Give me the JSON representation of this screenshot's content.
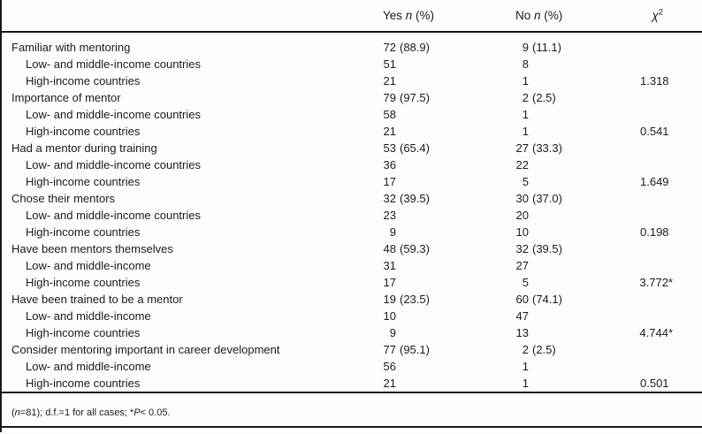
{
  "header": {
    "yes": {
      "pre": "Yes ",
      "n": "n",
      "post": " (%)"
    },
    "no": {
      "pre": "No ",
      "n": "n",
      "post": " (%)"
    },
    "chi": {
      "base": "χ",
      "sup": "2"
    }
  },
  "table": {
    "rows": [
      {
        "label": "Familiar with mentoring",
        "indent": false,
        "yes_n": "72",
        "yes_pct": "(88.9)",
        "no_n": "9",
        "no_pct": "(11.1)",
        "chi": "",
        "star": ""
      },
      {
        "label": "Low- and middle-income countries",
        "indent": true,
        "yes_n": "51",
        "yes_pct": "",
        "no_n": "8",
        "no_pct": "",
        "chi": "",
        "star": ""
      },
      {
        "label": "High-income countries",
        "indent": true,
        "yes_n": "21",
        "yes_pct": "",
        "no_n": "1",
        "no_pct": "",
        "chi": "1.318",
        "star": ""
      },
      {
        "label": "Importance of mentor",
        "indent": false,
        "yes_n": "79",
        "yes_pct": "(97.5)",
        "no_n": "2",
        "no_pct": "(2.5)",
        "chi": "",
        "star": ""
      },
      {
        "label": "Low- and middle-income countries",
        "indent": true,
        "yes_n": "58",
        "yes_pct": "",
        "no_n": "1",
        "no_pct": "",
        "chi": "",
        "star": ""
      },
      {
        "label": "High-income countries",
        "indent": true,
        "yes_n": "21",
        "yes_pct": "",
        "no_n": "1",
        "no_pct": "",
        "chi": "0.541",
        "star": ""
      },
      {
        "label": "Had a mentor during training",
        "indent": false,
        "yes_n": "53",
        "yes_pct": "(65.4)",
        "no_n": "27",
        "no_pct": "(33.3)",
        "chi": "",
        "star": ""
      },
      {
        "label": "Low- and middle-income countries",
        "indent": true,
        "yes_n": "36",
        "yes_pct": "",
        "no_n": "22",
        "no_pct": "",
        "chi": "",
        "star": ""
      },
      {
        "label": "High-income countries",
        "indent": true,
        "yes_n": "17",
        "yes_pct": "",
        "no_n": "5",
        "no_pct": "",
        "chi": "1.649",
        "star": ""
      },
      {
        "label": "Chose their mentors",
        "indent": false,
        "yes_n": "32",
        "yes_pct": "(39.5)",
        "no_n": "30",
        "no_pct": "(37.0)",
        "chi": "",
        "star": ""
      },
      {
        "label": "Low- and middle-income countries",
        "indent": true,
        "yes_n": "23",
        "yes_pct": "",
        "no_n": "20",
        "no_pct": "",
        "chi": "",
        "star": ""
      },
      {
        "label": "High-income countries",
        "indent": true,
        "yes_n": "9",
        "yes_pct": "",
        "no_n": "10",
        "no_pct": "",
        "chi": "0.198",
        "star": ""
      },
      {
        "label": "Have been mentors themselves",
        "indent": false,
        "yes_n": "48",
        "yes_pct": "(59.3)",
        "no_n": "32",
        "no_pct": "(39.5)",
        "chi": "",
        "star": ""
      },
      {
        "label": "Low- and middle-income",
        "indent": true,
        "yes_n": "31",
        "yes_pct": "",
        "no_n": "27",
        "no_pct": "",
        "chi": "",
        "star": ""
      },
      {
        "label": "High-income countries",
        "indent": true,
        "yes_n": "17",
        "yes_pct": "",
        "no_n": "5",
        "no_pct": "",
        "chi": "3.772",
        "star": "*"
      },
      {
        "label": "Have been trained to be a mentor",
        "indent": false,
        "yes_n": "19",
        "yes_pct": "(23.5)",
        "no_n": "60",
        "no_pct": "(74.1)",
        "chi": "",
        "star": ""
      },
      {
        "label": "Low- and middle-income",
        "indent": true,
        "yes_n": "10",
        "yes_pct": "",
        "no_n": "47",
        "no_pct": "",
        "chi": "",
        "star": ""
      },
      {
        "label": "High-income countries",
        "indent": true,
        "yes_n": "9",
        "yes_pct": "",
        "no_n": "13",
        "no_pct": "",
        "chi": "4.744",
        "star": "*"
      },
      {
        "label": "Consider mentoring important in career development",
        "indent": false,
        "yes_n": "77",
        "yes_pct": "(95.1)",
        "no_n": "2",
        "no_pct": "(2.5)",
        "chi": "",
        "star": ""
      },
      {
        "label": "Low- and middle-income",
        "indent": true,
        "yes_n": "56",
        "yes_pct": "",
        "no_n": "1",
        "no_pct": "",
        "chi": "",
        "star": ""
      },
      {
        "label": "High-income countries",
        "indent": true,
        "yes_n": "21",
        "yes_pct": "",
        "no_n": "1",
        "no_pct": "",
        "chi": "0.501",
        "star": ""
      }
    ]
  },
  "footnote": {
    "p1": "(",
    "n": "n",
    "p2": "=81); d.f.=1 for all cases; *",
    "p": "P",
    "p3": "< 0.05."
  }
}
